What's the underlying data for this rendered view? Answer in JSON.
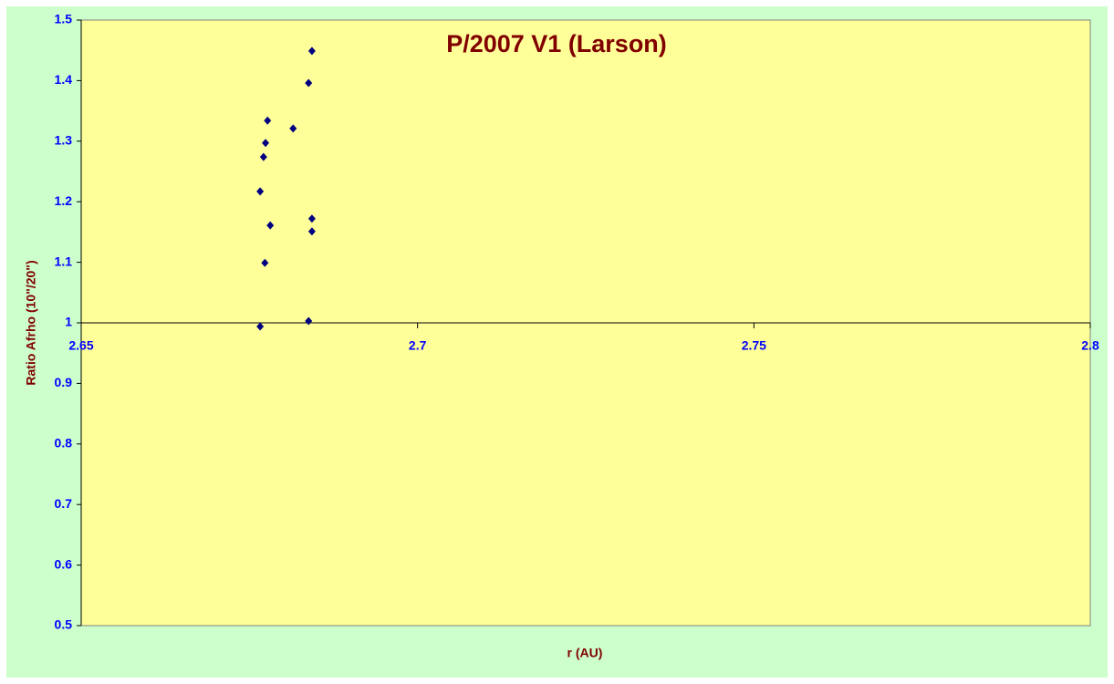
{
  "chart_data": {
    "type": "scatter",
    "title": "P/2007 V1 (Larson)",
    "x_label": "r (AU)",
    "y_label": "Ratio Afrho (10\"/20\")",
    "series": [
      {
        "name": null,
        "color": "#000080",
        "x": [
          2.6766,
          2.6766,
          2.6771,
          2.6774,
          2.6777,
          2.6773,
          2.6781,
          2.6815,
          2.6838,
          2.6843,
          2.6843,
          2.6843,
          2.6838
        ],
        "values": [
          0.994,
          1.217,
          1.274,
          1.297,
          1.334,
          1.099,
          1.161,
          1.321,
          1.396,
          1.449,
          1.172,
          1.151,
          1.003
        ]
      }
    ],
    "xlim": [
      2.65,
      2.8
    ],
    "xticks": [
      2.65,
      2.7,
      2.75,
      2.8
    ],
    "ylim": [
      0.5,
      1.5
    ],
    "yticks": [
      0.5,
      0.6,
      0.7,
      0.8,
      0.9,
      1,
      1.1,
      1.2,
      1.3,
      1.4,
      1.5
    ],
    "x_axis_crosses_at": 1,
    "background": "#ccffcc",
    "plot_background": "#ffff99"
  }
}
